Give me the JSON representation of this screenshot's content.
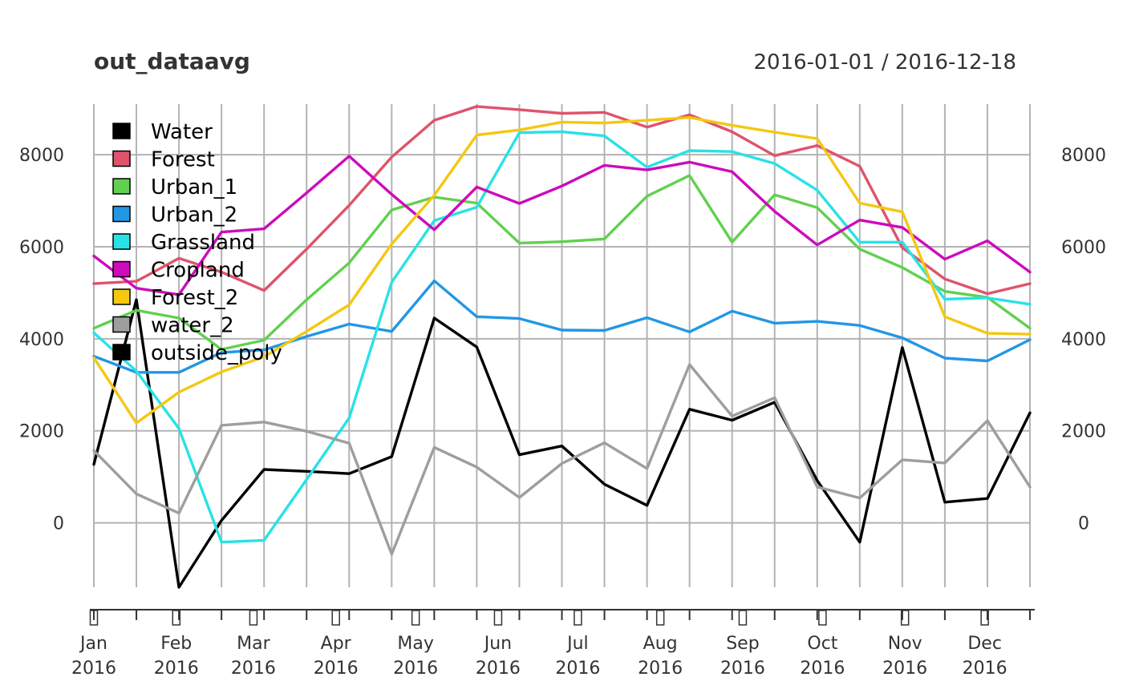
{
  "chart_data": {
    "type": "line",
    "title": "out_dataavg",
    "date_range_label": "2016-01-01 / 2016-12-18",
    "x": [
      "2016-01-01",
      "2016-01-17",
      "2016-02-02",
      "2016-02-18",
      "2016-03-05",
      "2016-03-21",
      "2016-04-06",
      "2016-04-22",
      "2016-05-08",
      "2016-05-24",
      "2016-06-09",
      "2016-06-25",
      "2016-07-11",
      "2016-07-27",
      "2016-08-12",
      "2016-08-28",
      "2016-09-13",
      "2016-09-29",
      "2016-10-15",
      "2016-10-31",
      "2016-11-16",
      "2016-12-02",
      "2016-12-18"
    ],
    "x_tick_labels": [
      {
        "date": "2016-01-01",
        "month": "Jan",
        "year": "2016"
      },
      {
        "date": "2016-02-01",
        "month": "Feb",
        "year": "2016"
      },
      {
        "date": "2016-03-01",
        "month": "Mar",
        "year": "2016"
      },
      {
        "date": "2016-04-01",
        "month": "Apr",
        "year": "2016"
      },
      {
        "date": "2016-05-01",
        "month": "May",
        "year": "2016"
      },
      {
        "date": "2016-06-01",
        "month": "Jun",
        "year": "2016"
      },
      {
        "date": "2016-07-01",
        "month": "Jul",
        "year": "2016"
      },
      {
        "date": "2016-08-01",
        "month": "Aug",
        "year": "2016"
      },
      {
        "date": "2016-09-01",
        "month": "Sep",
        "year": "2016"
      },
      {
        "date": "2016-10-01",
        "month": "Oct",
        "year": "2016"
      },
      {
        "date": "2016-11-01",
        "month": "Nov",
        "year": "2016"
      },
      {
        "date": "2016-12-01",
        "month": "Dec",
        "year": "2016"
      }
    ],
    "y_ticks": [
      0,
      2000,
      4000,
      6000,
      8000
    ],
    "ylim": [
      -1400,
      9100
    ],
    "grid": true,
    "legend_position": "top-left",
    "series": [
      {
        "name": "Water",
        "color": "#000000",
        "values": [
          1270,
          4850,
          -1400,
          50,
          1160,
          1120,
          1070,
          1440,
          4450,
          3820,
          1480,
          1670,
          840,
          380,
          2470,
          2230,
          2620,
          920,
          -420,
          3810,
          450,
          530,
          2390
        ]
      },
      {
        "name": "Forest",
        "color": "#DF536B",
        "values": [
          5200,
          5250,
          5750,
          5450,
          5050,
          5950,
          6900,
          7950,
          8750,
          9050,
          8980,
          8900,
          8920,
          8600,
          8870,
          8500,
          7980,
          8200,
          7750,
          5980,
          5300,
          4980,
          5200
        ]
      },
      {
        "name": "Urban_1",
        "color": "#61D04F",
        "values": [
          4230,
          4620,
          4450,
          3770,
          3970,
          4850,
          5650,
          6800,
          7080,
          6950,
          6080,
          6110,
          6170,
          7100,
          7550,
          6100,
          7130,
          6850,
          5950,
          5550,
          5030,
          4900,
          4230
        ]
      },
      {
        "name": "Urban_2",
        "color": "#2297E6",
        "values": [
          3620,
          3270,
          3270,
          3700,
          3760,
          4050,
          4320,
          4160,
          5260,
          4480,
          4440,
          4190,
          4180,
          4460,
          4150,
          4600,
          4340,
          4380,
          4290,
          4020,
          3580,
          3520,
          3980
        ]
      },
      {
        "name": "Grassland",
        "color": "#28E2E5",
        "values": [
          4130,
          3300,
          2050,
          -420,
          -380,
          940,
          2280,
          5230,
          6570,
          6860,
          8480,
          8500,
          8410,
          7730,
          8090,
          8070,
          7810,
          7230,
          6100,
          6100,
          4860,
          4890,
          4750
        ]
      },
      {
        "name": "Cropland",
        "color": "#CD0BBC",
        "values": [
          5800,
          5100,
          4960,
          6320,
          6390,
          7170,
          7970,
          7140,
          6370,
          7300,
          6940,
          7320,
          7770,
          7670,
          7840,
          7630,
          6770,
          6040,
          6580,
          6420,
          5730,
          6130,
          5450
        ]
      },
      {
        "name": "Forest_2",
        "color": "#F5C710",
        "values": [
          3590,
          2170,
          2840,
          3280,
          3610,
          4160,
          4740,
          6060,
          7120,
          8430,
          8540,
          8710,
          8690,
          8750,
          8810,
          8640,
          8490,
          8350,
          6950,
          6760,
          4480,
          4120,
          4100
        ]
      },
      {
        "name": "water_2",
        "color": "#9E9E9E",
        "values": [
          1570,
          630,
          210,
          2120,
          2190,
          1990,
          1730,
          -680,
          1640,
          1210,
          550,
          1290,
          1740,
          1180,
          3440,
          2320,
          2720,
          780,
          540,
          1370,
          1300,
          2220,
          780
        ]
      },
      {
        "name": "outside_poly",
        "color": "#000000",
        "values": [
          null,
          null,
          null,
          null,
          null,
          null,
          null,
          null,
          null,
          null,
          null,
          null,
          null,
          null,
          null,
          null,
          null,
          null,
          null,
          null,
          null,
          null,
          null
        ]
      }
    ]
  }
}
